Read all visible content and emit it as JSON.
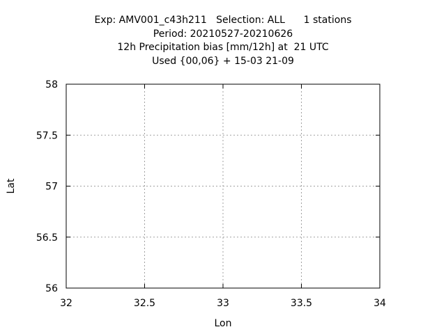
{
  "title_lines": [
    "Exp: AMV001_c43h211   Selection: ALL      1 stations",
    "Period: 20210527-20210626",
    "12h Precipitation bias [mm/12h] at  21 UTC",
    "Used {00,06} + 15-03 21-09"
  ],
  "chart_data": {
    "type": "scatter",
    "title": "Exp: AMV001_c43h211   Selection: ALL      1 stations\nPeriod: 20210527-20210626\n12h Precipitation bias [mm/12h] at  21 UTC\nUsed {00,06} + 15-03 21-09",
    "xlabel": "Lon",
    "ylabel": "Lat",
    "xlim": [
      32,
      34
    ],
    "ylim": [
      56,
      58
    ],
    "x_ticks": [
      32,
      32.5,
      33,
      33.5,
      34
    ],
    "x_tick_labels": [
      "32",
      "32.5",
      "33",
      "33.5",
      "34"
    ],
    "y_ticks": [
      56,
      56.5,
      57,
      57.5,
      58
    ],
    "y_tick_labels": [
      "56",
      "56.5",
      "57",
      "57.5",
      "58"
    ],
    "grid": true,
    "series": [],
    "colors": {
      "axis": "#000000",
      "grid": "#a0a0a0",
      "background": "#ffffff"
    }
  }
}
